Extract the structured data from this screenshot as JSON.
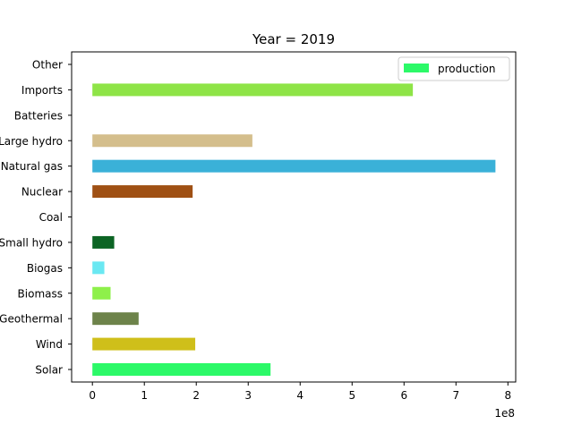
{
  "chart_data": {
    "type": "bar",
    "orientation": "horizontal",
    "title": "Year = 2019",
    "xlabel": "",
    "ylabel": "",
    "x_offset_text": "1e8",
    "xlim": [
      -40000000,
      815000000
    ],
    "x_ticks": [
      0,
      100000000,
      200000000,
      300000000,
      400000000,
      500000000,
      600000000,
      700000000,
      800000000
    ],
    "x_tick_labels": [
      "0",
      "1",
      "2",
      "3",
      "4",
      "5",
      "6",
      "7",
      "8"
    ],
    "categories": [
      "Solar",
      "Wind",
      "Geothermal",
      "Biomass",
      "Biogas",
      "Small hydro",
      "Coal",
      "Nuclear",
      "Natural gas",
      "Large hydro",
      "Batteries",
      "Imports",
      "Other"
    ],
    "series": [
      {
        "name": "production",
        "values": [
          343000000,
          198000000,
          89000000,
          35000000,
          23000000,
          42000000,
          0,
          193000000,
          776000000,
          308000000,
          0,
          617000000,
          0
        ],
        "colors": [
          "#2cf968",
          "#cfbf1a",
          "#6d834a",
          "#8ef04a",
          "#6ae8f2",
          "#0c6424",
          "#555555",
          "#9f5014",
          "#3ab1d8",
          "#d4be8c",
          "#888888",
          "#8ee447",
          "#999999"
        ]
      }
    ],
    "legend": {
      "position": "top-right",
      "entries": [
        "production"
      ],
      "color": "#2cf968"
    },
    "grid": false
  }
}
